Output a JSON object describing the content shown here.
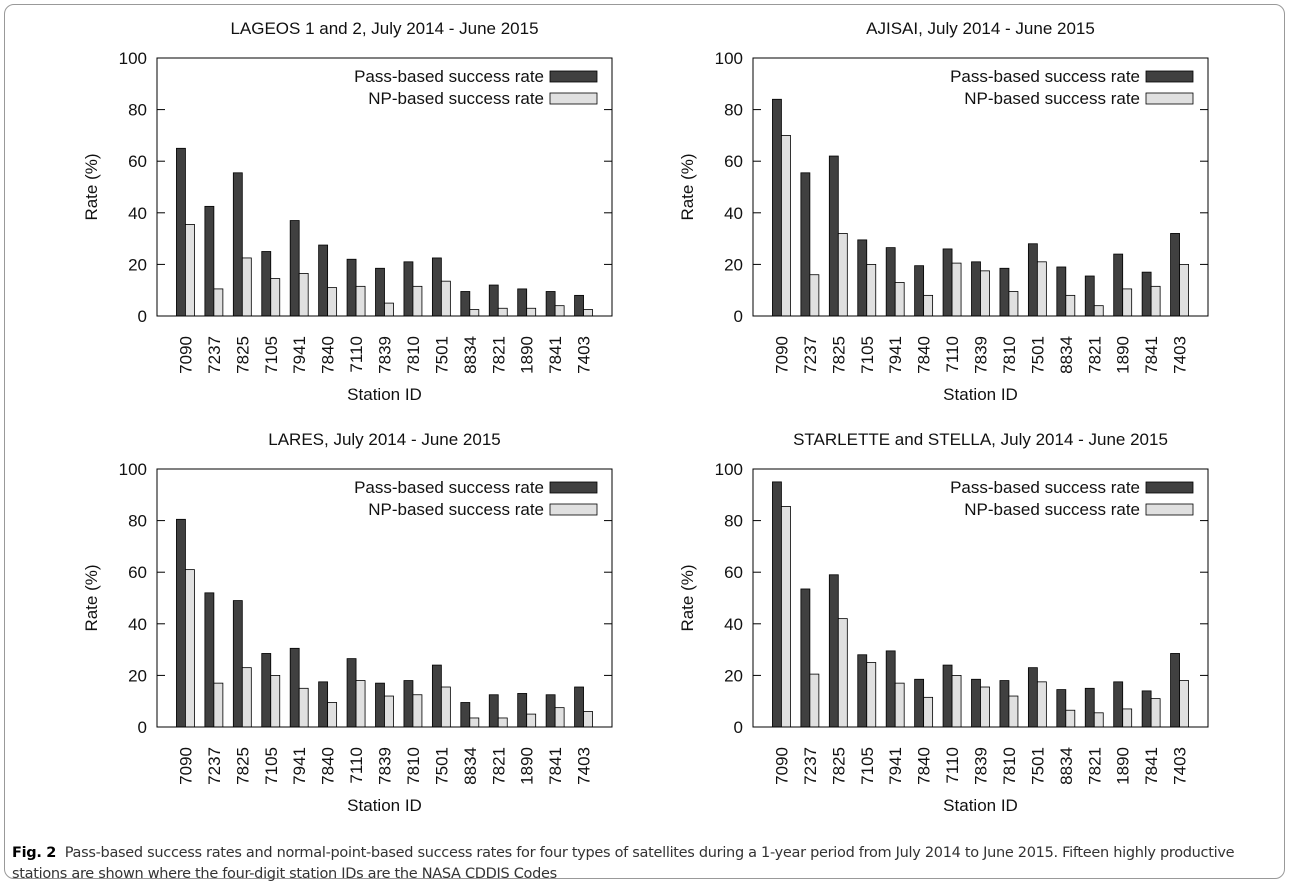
{
  "chart_data": [
    {
      "type": "bar",
      "title": "LAGEOS 1 and 2, July 2014 - June 2015",
      "xlabel": "Station ID",
      "ylabel": "Rate (%)",
      "categories": [
        "7090",
        "7237",
        "7825",
        "7105",
        "7941",
        "7840",
        "7110",
        "7839",
        "7810",
        "7501",
        "8834",
        "7821",
        "1890",
        "7841",
        "7403"
      ],
      "series": [
        {
          "name": "Pass-based success rate",
          "color": "#404040",
          "values": [
            65,
            42.5,
            55.5,
            25,
            37,
            27.5,
            22,
            18.5,
            21,
            22.5,
            9.5,
            12,
            10.5,
            9.5,
            8
          ]
        },
        {
          "name": "NP-based success rate",
          "color": "#e0e0e0",
          "values": [
            35.5,
            10.5,
            22.5,
            14.5,
            16.5,
            11,
            11.5,
            5,
            11.5,
            13.5,
            2.5,
            3,
            3,
            4,
            2.5
          ]
        }
      ],
      "ylim": [
        0,
        100
      ],
      "yticks": [
        0,
        20,
        40,
        60,
        80,
        100
      ],
      "legend": "upper right"
    },
    {
      "type": "bar",
      "title": "AJISAI, July 2014 - June 2015",
      "xlabel": "Station ID",
      "ylabel": "Rate (%)",
      "categories": [
        "7090",
        "7237",
        "7825",
        "7105",
        "7941",
        "7840",
        "7110",
        "7839",
        "7810",
        "7501",
        "8834",
        "7821",
        "1890",
        "7841",
        "7403"
      ],
      "series": [
        {
          "name": "Pass-based success rate",
          "color": "#404040",
          "values": [
            84,
            55.5,
            62,
            29.5,
            26.5,
            19.5,
            26,
            21,
            18.5,
            28,
            19,
            15.5,
            24,
            17,
            32
          ]
        },
        {
          "name": "NP-based success rate",
          "color": "#e0e0e0",
          "values": [
            70,
            16,
            32,
            20,
            13,
            8,
            20.5,
            17.5,
            9.5,
            21,
            8,
            4,
            10.5,
            11.5,
            20
          ]
        }
      ],
      "ylim": [
        0,
        100
      ],
      "yticks": [
        0,
        20,
        40,
        60,
        80,
        100
      ],
      "legend": "upper right"
    },
    {
      "type": "bar",
      "title": "LARES, July 2014 - June 2015",
      "xlabel": "Station ID",
      "ylabel": "Rate (%)",
      "categories": [
        "7090",
        "7237",
        "7825",
        "7105",
        "7941",
        "7840",
        "7110",
        "7839",
        "7810",
        "7501",
        "8834",
        "7821",
        "1890",
        "7841",
        "7403"
      ],
      "series": [
        {
          "name": "Pass-based success rate",
          "color": "#404040",
          "values": [
            80.5,
            52,
            49,
            28.5,
            30.5,
            17.5,
            26.5,
            17,
            18,
            24,
            9.5,
            12.5,
            13,
            12.5,
            15.5
          ]
        },
        {
          "name": "NP-based success rate",
          "color": "#e0e0e0",
          "values": [
            61,
            17,
            23,
            20,
            15,
            9.5,
            18,
            12,
            12.5,
            15.5,
            3.5,
            3.5,
            5,
            7.5,
            6
          ]
        }
      ],
      "ylim": [
        0,
        100
      ],
      "yticks": [
        0,
        20,
        40,
        60,
        80,
        100
      ],
      "legend": "upper right"
    },
    {
      "type": "bar",
      "title": "STARLETTE and STELLA, July 2014 - June 2015",
      "xlabel": "Station ID",
      "ylabel": "Rate (%)",
      "categories": [
        "7090",
        "7237",
        "7825",
        "7105",
        "7941",
        "7840",
        "7110",
        "7839",
        "7810",
        "7501",
        "8834",
        "7821",
        "1890",
        "7841",
        "7403"
      ],
      "series": [
        {
          "name": "Pass-based success rate",
          "color": "#404040",
          "values": [
            95,
            53.5,
            59,
            28,
            29.5,
            18.5,
            24,
            18.5,
            18,
            23,
            14.5,
            15,
            17.5,
            14,
            28.5
          ]
        },
        {
          "name": "NP-based success rate",
          "color": "#e0e0e0",
          "values": [
            85.5,
            20.5,
            42,
            25,
            17,
            11.5,
            20,
            15.5,
            12,
            17.5,
            6.5,
            5.5,
            7,
            11,
            18
          ]
        }
      ],
      "ylim": [
        0,
        100
      ],
      "yticks": [
        0,
        20,
        40,
        60,
        80,
        100
      ],
      "legend": "upper right"
    }
  ],
  "caption": {
    "label": "Fig. 2",
    "text": "Pass-based success rates and normal-point-based success rates for four types of satellites during a 1-year period from July 2014 to June 2015. Fifteen highly productive stations are shown where the four-digit station IDs are the NASA CDDIS Codes"
  }
}
